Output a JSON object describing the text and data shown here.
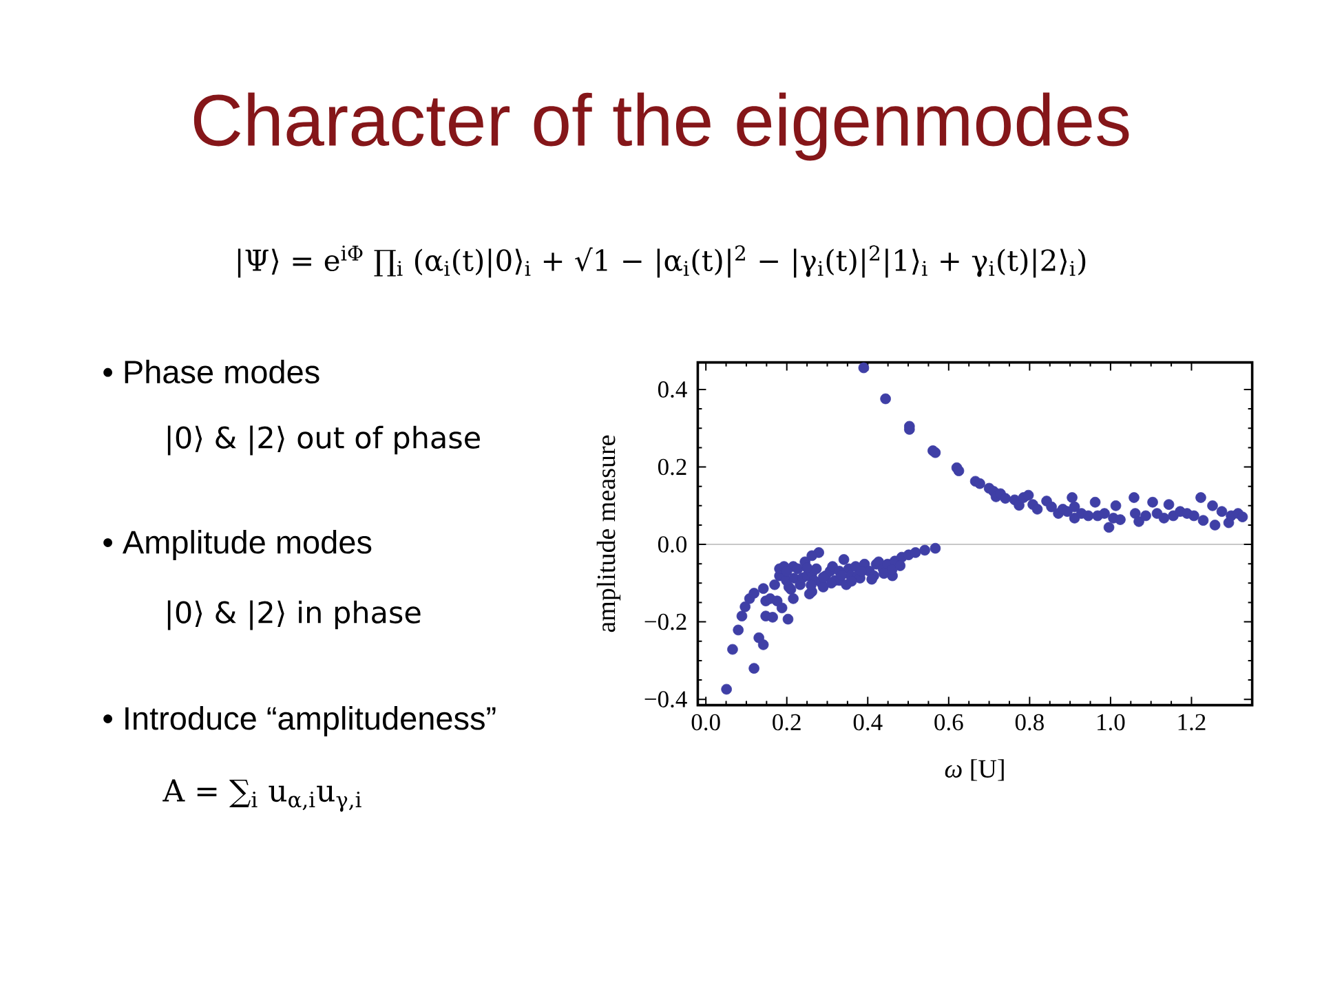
{
  "chart_data": {
    "type": "scatter",
    "title": "Character of the eigenmodes",
    "xlabel": "*ω* [U]",
    "ylabel": "amplitude measure",
    "annotations": [
      "|Ψ⟩ = e$^{iΦ}$ ∏$_{i}$ (α$_{i}$(t)|0⟩$_{i}$ + √1 − |α$_{i}$(t)|$^{2}$ − |γ$_{i}$(t)|$^{2}$|1⟩$_{i}$ + γ$_{i}$(t)|2⟩$_{i}$)",
      "• Phase modes",
      "|0⟩ & |2⟩  out of phase",
      "• Amplitude modes",
      "|0⟩ & |2⟩  in phase",
      "• Introduce “amplitudeness”",
      "A = ∑$_{i}$ u$_{α,i}$u$_{γ,i}$"
    ],
    "x": [
      0.051,
      0.066,
      0.08,
      0.089,
      0.097,
      0.108,
      0.119,
      0.119,
      0.131,
      0.142,
      0.142,
      0.148,
      0.148,
      0.159,
      0.165,
      0.17,
      0.176,
      0.182,
      0.182,
      0.188,
      0.193,
      0.199,
      0.203,
      0.205,
      0.21,
      0.216,
      0.216,
      0.218,
      0.227,
      0.233,
      0.239,
      0.245,
      0.25,
      0.256,
      0.262,
      0.262,
      0.267,
      0.273,
      0.279,
      0.285,
      0.29,
      0.296,
      0.262,
      0.307,
      0.313,
      0.319,
      0.33,
      0.33,
      0.341,
      0.347,
      0.353,
      0.358,
      0.37,
      0.375,
      0.381,
      0.392,
      0.404,
      0.415,
      0.421,
      0.427,
      0.438,
      0.449,
      0.461,
      0.467,
      0.484,
      0.501,
      0.518,
      0.541,
      0.567,
      0.2,
      0.25,
      0.26,
      0.29,
      0.31,
      0.335,
      0.36,
      0.385,
      0.41,
      0.44,
      0.46,
      0.48,
      0.39,
      0.444,
      0.503,
      0.503,
      0.561,
      0.567,
      0.62,
      0.625,
      0.666,
      0.677,
      0.7,
      0.711,
      0.717,
      0.728,
      0.74,
      0.763,
      0.774,
      0.785,
      0.797,
      0.808,
      0.819,
      0.842,
      0.854,
      0.871,
      0.882,
      0.893,
      0.905,
      0.911,
      0.911,
      0.928,
      0.945,
      0.962,
      0.968,
      0.985,
      0.996,
      1.007,
      1.013,
      1.024,
      1.058,
      1.061,
      1.07,
      1.087,
      1.104,
      1.115,
      1.132,
      1.144,
      1.155,
      1.172,
      1.189,
      1.206,
      1.223,
      1.229,
      1.252,
      1.258,
      1.275,
      1.292,
      1.298,
      1.315,
      1.326
    ],
    "values": [
      -0.374,
      -0.271,
      -0.221,
      -0.185,
      -0.161,
      -0.14,
      -0.126,
      -0.32,
      -0.241,
      -0.114,
      -0.259,
      -0.146,
      -0.185,
      -0.14,
      -0.188,
      -0.104,
      -0.146,
      -0.081,
      -0.063,
      -0.164,
      -0.057,
      -0.093,
      -0.193,
      -0.11,
      -0.116,
      -0.14,
      -0.057,
      -0.087,
      -0.063,
      -0.104,
      -0.086,
      -0.045,
      -0.081,
      -0.128,
      -0.075,
      -0.122,
      -0.093,
      -0.063,
      -0.021,
      -0.099,
      -0.11,
      -0.081,
      -0.029,
      -0.069,
      -0.057,
      -0.093,
      -0.069,
      -0.093,
      -0.039,
      -0.104,
      -0.063,
      -0.081,
      -0.057,
      -0.081,
      -0.087,
      -0.051,
      -0.069,
      -0.081,
      -0.051,
      -0.045,
      -0.063,
      -0.051,
      -0.081,
      -0.043,
      -0.033,
      -0.027,
      -0.021,
      -0.015,
      -0.01,
      -0.07,
      -0.06,
      -0.105,
      -0.085,
      -0.1,
      -0.08,
      -0.095,
      -0.07,
      -0.09,
      -0.075,
      -0.065,
      -0.055,
      0.456,
      0.376,
      0.305,
      0.297,
      0.242,
      0.237,
      0.198,
      0.19,
      0.163,
      0.157,
      0.145,
      0.137,
      0.123,
      0.131,
      0.119,
      0.115,
      0.101,
      0.121,
      0.127,
      0.103,
      0.091,
      0.112,
      0.097,
      0.08,
      0.091,
      0.085,
      0.121,
      0.097,
      0.068,
      0.08,
      0.074,
      0.109,
      0.074,
      0.08,
      0.044,
      0.068,
      0.1,
      0.064,
      0.121,
      0.08,
      0.059,
      0.074,
      0.109,
      0.08,
      0.068,
      0.103,
      0.074,
      0.085,
      0.08,
      0.074,
      0.121,
      0.062,
      0.1,
      0.05,
      0.085,
      0.056,
      0.074,
      0.08,
      0.071
    ],
    "color": "#3f3fa6",
    "marker": "circle",
    "xlim": [
      -0.02,
      1.35
    ],
    "ylim": [
      -0.415,
      0.47
    ],
    "xticks": [
      {
        "value": 0,
        "label": "0.0"
      },
      0.2,
      0.4,
      0.6,
      0.8,
      {
        "value": 1,
        "label": "1.0"
      },
      1.2
    ],
    "yticks": [
      {
        "value": -0.4,
        "label": "−0.4"
      },
      {
        "value": -0.2,
        "label": "−0.2"
      },
      {
        "value": 0,
        "label": "0.0"
      },
      0.2,
      0.4
    ],
    "ref_lines": [
      {
        "axis": "y",
        "value": 0,
        "color": "#c8c8c8"
      }
    ]
  }
}
